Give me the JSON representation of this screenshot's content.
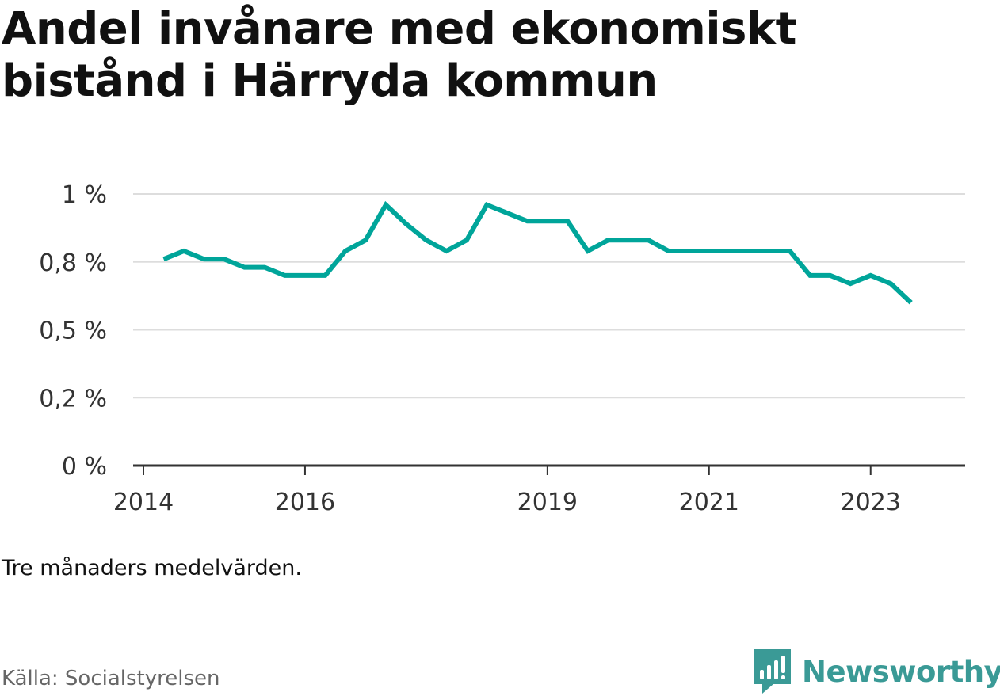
{
  "title": "Andel invånare med ekonomiskt bistånd i Härryda kommun",
  "note": "Tre månaders medelvärden.",
  "source": "Källa: Socialstyrelsen",
  "brand": {
    "name": "Newsworthy",
    "icon": "newsworthy-logo-icon",
    "color": "#3a9a96"
  },
  "colors": {
    "line": "#00a59a",
    "grid": "#dddddd",
    "axis": "#333333"
  },
  "chart_data": {
    "type": "line",
    "title": "Andel invånare med ekonomiskt bistånd i Härryda kommun",
    "xlabel": "",
    "ylabel": "",
    "x_ticks": [
      "2014",
      "2016",
      "2019",
      "2021",
      "2023"
    ],
    "y_ticks": [
      "0 %",
      "0,2 %",
      "0,5 %",
      "0,8 %",
      "1 %"
    ],
    "ylim": [
      0,
      1.0
    ],
    "grid": true,
    "series": [
      {
        "x": [
          "2014-04",
          "2014-07",
          "2014-10",
          "2015-01",
          "2015-04",
          "2015-07",
          "2015-10",
          "2016-01",
          "2016-04",
          "2016-07",
          "2016-10",
          "2017-01",
          "2017-04",
          "2017-07",
          "2017-10",
          "2018-01",
          "2018-04",
          "2018-07",
          "2018-10",
          "2019-01",
          "2019-04",
          "2019-07",
          "2019-10",
          "2020-01",
          "2020-04",
          "2020-07",
          "2020-10",
          "2021-01",
          "2021-04",
          "2021-07",
          "2021-10",
          "2022-01",
          "2022-04",
          "2022-07",
          "2022-10",
          "2023-01",
          "2023-04",
          "2023-07"
        ],
        "values": [
          0.76,
          0.79,
          0.76,
          0.76,
          0.73,
          0.73,
          0.7,
          0.7,
          0.7,
          0.79,
          0.83,
          0.96,
          0.89,
          0.83,
          0.79,
          0.83,
          0.96,
          0.93,
          0.9,
          0.9,
          0.9,
          0.79,
          0.83,
          0.83,
          0.83,
          0.79,
          0.79,
          0.79,
          0.79,
          0.79,
          0.79,
          0.79,
          0.7,
          0.7,
          0.67,
          0.7,
          0.67,
          0.6
        ]
      }
    ]
  }
}
